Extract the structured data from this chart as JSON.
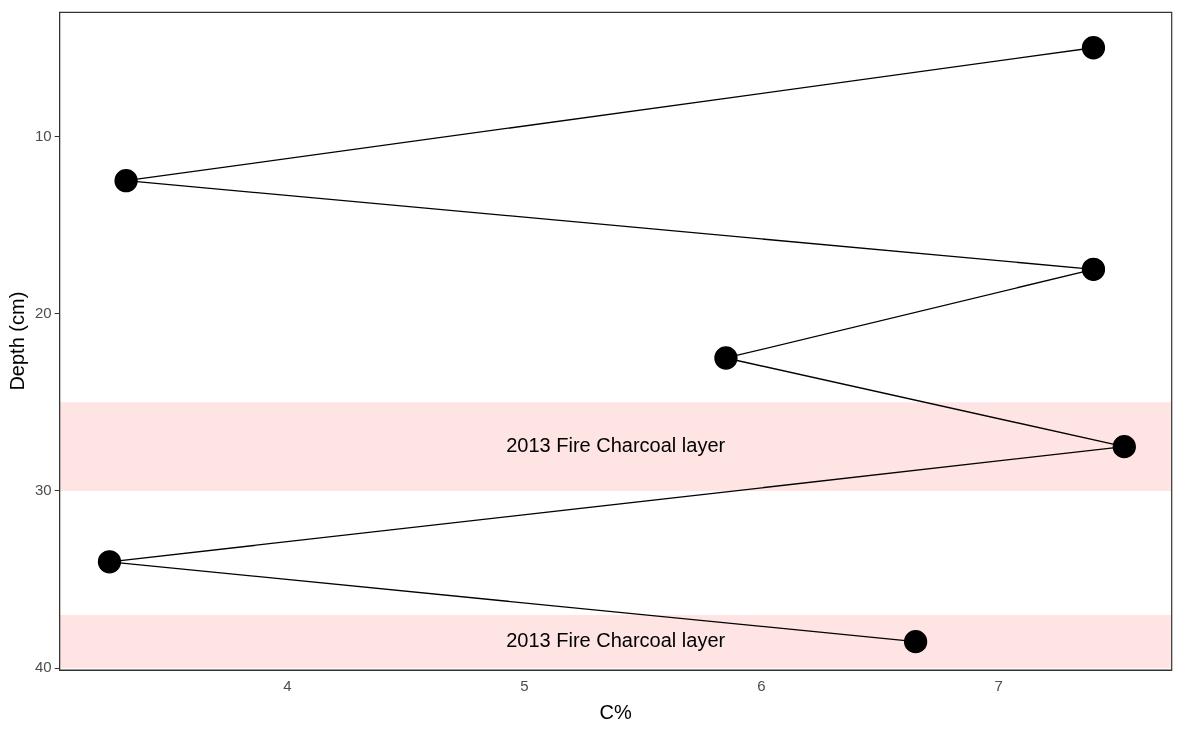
{
  "chart_data": {
    "type": "line",
    "xlabel": "C%",
    "ylabel": "Depth (cm)",
    "x": [
      7.4,
      3.32,
      7.4,
      5.85,
      7.53,
      3.25,
      6.65
    ],
    "series": [
      {
        "color": "#000000",
        "values": [
          5,
          12.5,
          17.5,
          22.5,
          27.5,
          34,
          38.5
        ]
      }
    ],
    "xlim": [
      3.04,
      7.73
    ],
    "xticks": [
      4,
      5,
      6,
      7
    ],
    "ylim": [
      40.1,
      3
    ],
    "yticks": [
      10,
      20,
      30,
      40
    ],
    "bands": [
      {
        "axis": "y",
        "from": 25,
        "to": 30,
        "label": "2013 Fire Charcoal layer",
        "color": "#ffe4e4"
      },
      {
        "axis": "y",
        "from": 37,
        "to": 40,
        "label": "2013 Fire Charcoal layer",
        "color": "#ffe4e4"
      }
    ],
    "grid": false,
    "legend": false,
    "marker": "circle",
    "line_style": "solid"
  }
}
